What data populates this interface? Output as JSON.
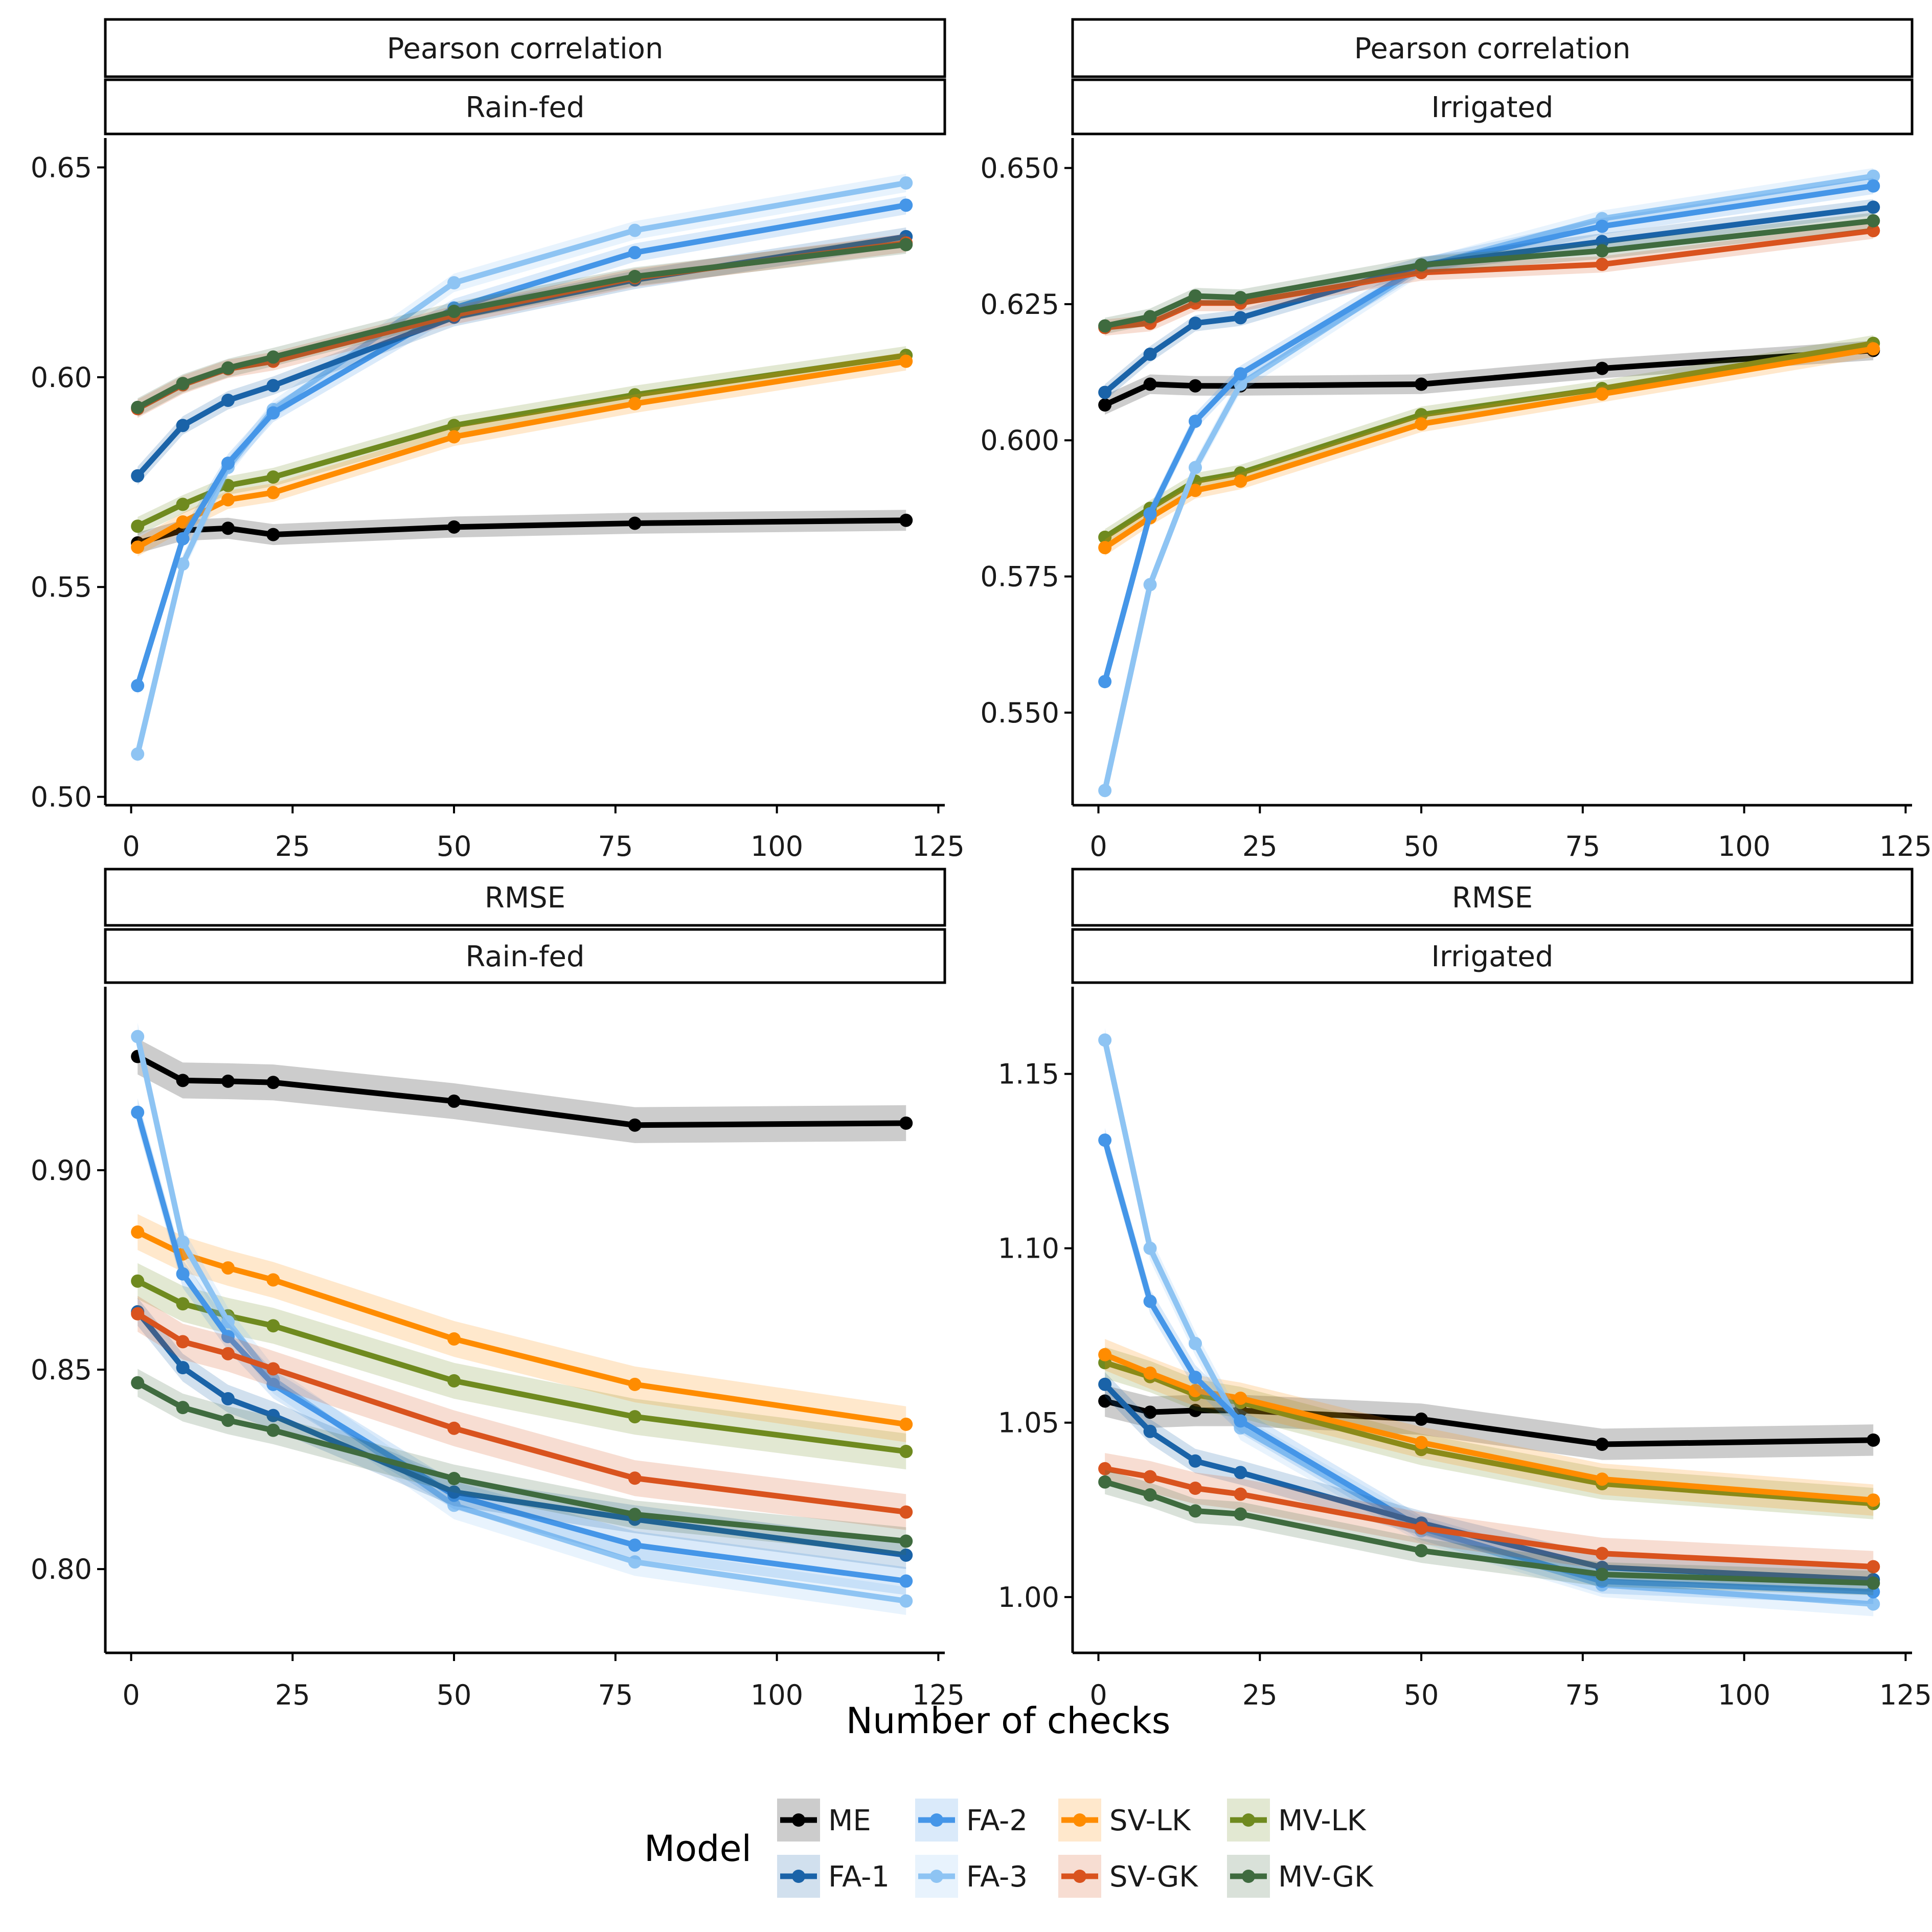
{
  "x_axis_title": "Number of checks",
  "legend_title": "Model",
  "x_ticks": [
    "0",
    "25",
    "50",
    "75",
    "100",
    "125"
  ],
  "models": [
    {
      "name": "ME",
      "color": "#000000"
    },
    {
      "name": "FA-1",
      "color": "#1a63a8"
    },
    {
      "name": "FA-2",
      "color": "#4596e8"
    },
    {
      "name": "FA-3",
      "color": "#8ec4f3"
    },
    {
      "name": "SV-LK",
      "color": "#ff8c00"
    },
    {
      "name": "SV-GK",
      "color": "#d9531e"
    },
    {
      "name": "MV-LK",
      "color": "#6f8a1f"
    },
    {
      "name": "MV-GK",
      "color": "#3f6b3f"
    }
  ],
  "chart_data": [
    {
      "type": "line",
      "strip_top": "Pearson correlation",
      "strip_bottom": "Rain-fed",
      "x": [
        1,
        8,
        15,
        22,
        50,
        78,
        120
      ],
      "xlim": [
        -4,
        126
      ],
      "ylim": [
        0.498,
        0.657
      ],
      "y_ticks": [
        "0.50",
        "0.55",
        "0.60",
        "0.65"
      ],
      "series": [
        {
          "name": "ME",
          "values": [
            0.5605,
            0.5635,
            0.564,
            0.5625,
            0.5643,
            0.5652,
            0.5659
          ],
          "band": 0.0025
        },
        {
          "name": "FA-1",
          "values": [
            0.5765,
            0.5885,
            0.5945,
            0.598,
            0.6143,
            0.6232,
            0.6335
          ],
          "band": 0.0022
        },
        {
          "name": "FA-2",
          "values": [
            0.5265,
            0.5615,
            0.5795,
            0.5915,
            0.6165,
            0.6297,
            0.641
          ],
          "band": 0.0022
        },
        {
          "name": "FA-3",
          "values": [
            0.5102,
            0.5555,
            0.5785,
            0.5923,
            0.6225,
            0.635,
            0.6463
          ],
          "band": 0.0022
        },
        {
          "name": "SV-LK",
          "values": [
            0.5595,
            0.5655,
            0.5708,
            0.5725,
            0.5858,
            0.5937,
            0.6038
          ],
          "band": 0.0022
        },
        {
          "name": "SV-GK",
          "values": [
            0.5925,
            0.5982,
            0.602,
            0.6038,
            0.6148,
            0.6237,
            0.632
          ],
          "band": 0.0022
        },
        {
          "name": "MV-LK",
          "values": [
            0.5645,
            0.5697,
            0.5742,
            0.5762,
            0.5885,
            0.5958,
            0.6052
          ],
          "band": 0.0022
        },
        {
          "name": "MV-GK",
          "values": [
            0.5928,
            0.5985,
            0.6022,
            0.6048,
            0.6157,
            0.624,
            0.6316
          ],
          "band": 0.0022
        }
      ]
    },
    {
      "type": "line",
      "strip_top": "Pearson correlation",
      "strip_bottom": "Irrigated",
      "x": [
        1,
        8,
        15,
        22,
        50,
        78,
        120
      ],
      "xlim": [
        -4,
        126
      ],
      "ylim": [
        0.533,
        0.6555
      ],
      "y_ticks": [
        "0.550",
        "0.575",
        "0.600",
        "0.625",
        "0.650"
      ],
      "series": [
        {
          "name": "ME",
          "values": [
            0.6065,
            0.6103,
            0.61,
            0.61,
            0.6103,
            0.6132,
            0.6165
          ],
          "band": 0.0018
        },
        {
          "name": "FA-1",
          "values": [
            0.6088,
            0.6158,
            0.6215,
            0.6225,
            0.6322,
            0.6365,
            0.6428
          ],
          "band": 0.0015
        },
        {
          "name": "FA-2",
          "values": [
            0.5557,
            0.5865,
            0.6035,
            0.6122,
            0.632,
            0.6393,
            0.6467
          ],
          "band": 0.0015
        },
        {
          "name": "FA-3",
          "values": [
            0.5357,
            0.5735,
            0.595,
            0.6103,
            0.6318,
            0.6407,
            0.6485
          ],
          "band": 0.0015
        },
        {
          "name": "SV-LK",
          "values": [
            0.5803,
            0.5858,
            0.5908,
            0.5925,
            0.603,
            0.6085,
            0.6168
          ],
          "band": 0.0015
        },
        {
          "name": "SV-GK",
          "values": [
            0.6207,
            0.6215,
            0.6252,
            0.6252,
            0.6308,
            0.6323,
            0.6385
          ],
          "band": 0.0015
        },
        {
          "name": "MV-LK",
          "values": [
            0.5822,
            0.5875,
            0.5925,
            0.594,
            0.6047,
            0.6095,
            0.6178
          ],
          "band": 0.0015
        },
        {
          "name": "MV-GK",
          "values": [
            0.621,
            0.6227,
            0.6265,
            0.6262,
            0.6322,
            0.6348,
            0.6403
          ],
          "band": 0.0015
        }
      ]
    },
    {
      "type": "line",
      "strip_top": "RMSE",
      "strip_bottom": "Rain-fed",
      "x": [
        1,
        8,
        15,
        22,
        50,
        78,
        120
      ],
      "xlim": [
        -4,
        126
      ],
      "ylim": [
        0.779,
        0.946
      ],
      "y_ticks": [
        "0.80",
        "0.85",
        "0.90"
      ],
      "series": [
        {
          "name": "ME",
          "values": [
            0.9285,
            0.9225,
            0.9223,
            0.922,
            0.9173,
            0.9113,
            0.9118
          ],
          "band": 0.0045
        },
        {
          "name": "FA-1",
          "values": [
            0.8645,
            0.8505,
            0.8427,
            0.8385,
            0.8193,
            0.8125,
            0.8035
          ],
          "band": 0.0035
        },
        {
          "name": "FA-2",
          "values": [
            0.9145,
            0.874,
            0.8583,
            0.8463,
            0.8185,
            0.806,
            0.797
          ],
          "band": 0.0035
        },
        {
          "name": "FA-3",
          "values": [
            0.9335,
            0.882,
            0.862,
            0.8475,
            0.816,
            0.8018,
            0.792
          ],
          "band": 0.0035
        },
        {
          "name": "SV-LK",
          "values": [
            0.8845,
            0.879,
            0.8755,
            0.8725,
            0.8577,
            0.8463,
            0.8363
          ],
          "band": 0.0045
        },
        {
          "name": "SV-GK",
          "values": [
            0.864,
            0.857,
            0.854,
            0.8502,
            0.8353,
            0.8228,
            0.8143
          ],
          "band": 0.0045
        },
        {
          "name": "MV-LK",
          "values": [
            0.8722,
            0.8665,
            0.8635,
            0.861,
            0.8472,
            0.8382,
            0.8295
          ],
          "band": 0.0045
        },
        {
          "name": "MV-GK",
          "values": [
            0.8467,
            0.8405,
            0.8373,
            0.8348,
            0.8227,
            0.8137,
            0.807
          ],
          "band": 0.0035
        }
      ]
    },
    {
      "type": "line",
      "strip_top": "RMSE",
      "strip_bottom": "Irrigated",
      "x": [
        1,
        8,
        15,
        22,
        50,
        78,
        120
      ],
      "xlim": [
        -4,
        126
      ],
      "ylim": [
        0.984,
        1.175
      ],
      "y_ticks": [
        "1.00",
        "1.05",
        "1.10",
        "1.15"
      ],
      "series": [
        {
          "name": "ME",
          "values": [
            1.0562,
            1.053,
            1.0535,
            1.0535,
            1.051,
            1.0438,
            1.045
          ],
          "band": 0.0045
        },
        {
          "name": "FA-1",
          "values": [
            1.061,
            1.0475,
            1.039,
            1.0357,
            1.0212,
            1.0085,
            1.005
          ],
          "band": 0.0035
        },
        {
          "name": "FA-2",
          "values": [
            1.131,
            1.0848,
            1.063,
            1.0505,
            1.0198,
            1.0045,
            1.0015
          ],
          "band": 0.0035
        },
        {
          "name": "FA-3",
          "values": [
            1.1597,
            1.1,
            1.0727,
            1.0485,
            1.019,
            1.0035,
            0.998
          ],
          "band": 0.0035
        },
        {
          "name": "SV-LK",
          "values": [
            1.0695,
            1.0642,
            1.0592,
            1.057,
            1.0443,
            1.0338,
            1.0278
          ],
          "band": 0.0045
        },
        {
          "name": "SV-GK",
          "values": [
            1.0368,
            1.0345,
            1.0312,
            1.0295,
            1.0198,
            1.0125,
            1.0087
          ],
          "band": 0.0045
        },
        {
          "name": "MV-LK",
          "values": [
            1.0672,
            1.0632,
            1.058,
            1.0558,
            1.0423,
            1.0325,
            1.0268
          ],
          "band": 0.0045
        },
        {
          "name": "MV-GK",
          "values": [
            1.033,
            1.0293,
            1.0247,
            1.0238,
            1.0133,
            1.0065,
            1.004
          ],
          "band": 0.0035
        }
      ]
    }
  ]
}
